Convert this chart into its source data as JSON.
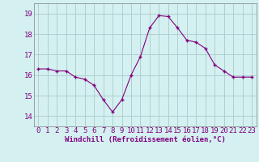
{
  "x": [
    0,
    1,
    2,
    3,
    4,
    5,
    6,
    7,
    8,
    9,
    10,
    11,
    12,
    13,
    14,
    15,
    16,
    17,
    18,
    19,
    20,
    21,
    22,
    23
  ],
  "y": [
    16.3,
    16.3,
    16.2,
    16.2,
    15.9,
    15.8,
    15.5,
    14.8,
    14.2,
    14.8,
    16.0,
    16.9,
    18.3,
    18.9,
    18.85,
    18.3,
    17.7,
    17.6,
    17.3,
    16.5,
    16.2,
    15.9,
    15.9,
    15.9
  ],
  "line_color": "#800080",
  "marker": "+",
  "marker_size": 3,
  "marker_linewidth": 1.0,
  "bg_color": "#d4f0f0",
  "grid_color": "#aacccc",
  "xlabel": "Windchill (Refroidissement éolien,°C)",
  "xlabel_color": "#800080",
  "xlabel_fontsize": 6.5,
  "xtick_labels": [
    "0",
    "1",
    "2",
    "3",
    "4",
    "5",
    "6",
    "7",
    "8",
    "9",
    "10",
    "11",
    "12",
    "13",
    "14",
    "15",
    "16",
    "17",
    "18",
    "19",
    "20",
    "21",
    "22",
    "23"
  ],
  "ytick_vals": [
    14,
    15,
    16,
    17,
    18,
    19
  ],
  "ylim": [
    13.5,
    19.5
  ],
  "xlim": [
    -0.5,
    23.5
  ],
  "tick_color": "#800080",
  "tick_fontsize": 6.5,
  "spine_color": "#808080",
  "linewidth": 0.8
}
